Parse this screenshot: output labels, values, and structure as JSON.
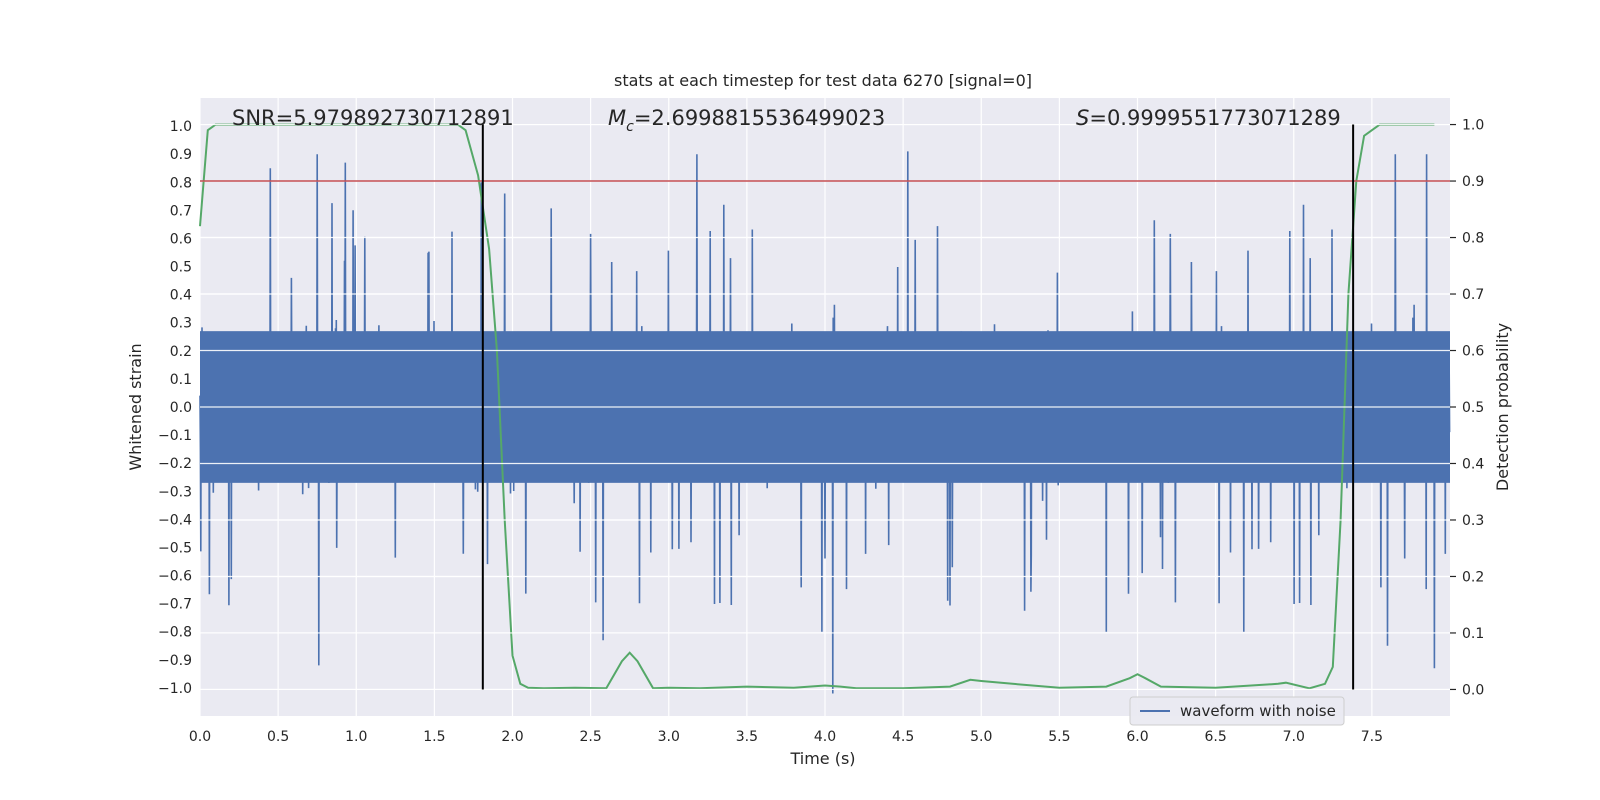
{
  "chart_data": {
    "type": "line",
    "title": "stats at each timestep for test data 6270 [signal=0]",
    "xlabel": "Time (s)",
    "ylabel": "Whitened strain",
    "y2label": "Detection probability",
    "xlim": [
      0.0,
      8.0
    ],
    "ylim": [
      -1.1,
      1.1
    ],
    "y2lim": [
      -0.047,
      1.047
    ],
    "xticks": [
      "0.0",
      "0.5",
      "1.0",
      "1.5",
      "2.0",
      "2.5",
      "3.0",
      "3.5",
      "4.0",
      "4.5",
      "5.0",
      "5.5",
      "6.0",
      "6.5",
      "7.0",
      "7.5"
    ],
    "yticks": [
      "1.0",
      "0.9",
      "0.8",
      "0.7",
      "0.6",
      "0.5",
      "0.4",
      "0.3",
      "0.2",
      "0.1",
      "0.0",
      "-0.1",
      "-0.2",
      "-0.3",
      "-0.4",
      "-0.5",
      "-0.6",
      "-0.7",
      "-0.8",
      "-0.9",
      "-1.0"
    ],
    "y2ticks": [
      "1.0",
      "0.9",
      "0.8",
      "0.7",
      "0.6",
      "0.5",
      "0.4",
      "0.3",
      "0.2",
      "0.1",
      "0.0"
    ],
    "grid": true,
    "legend_position": "lower-right",
    "annotations": {
      "snr": "SNR=5.979892730712891",
      "mc_symbol": "M",
      "mc_sub": "c",
      "mc_value": "=2.6998815536499023",
      "s_symbol": "S",
      "s_value": "=0.9999551773071289"
    },
    "threshold": 0.9,
    "vertical_lines_x": [
      1.81,
      7.38
    ],
    "series": [
      {
        "name": "waveform with noise",
        "axis": "left",
        "color": "#4c72b0",
        "description_visible": "dense noise waveform spanning 0-8 s",
        "envelope_hi": 0.45,
        "envelope_lo": -0.45,
        "peaks": [
          {
            "x": 0.45,
            "y": 0.85
          },
          {
            "x": 0.75,
            "y": 0.9
          },
          {
            "x": 0.93,
            "y": 0.87
          },
          {
            "x": 0.76,
            "y": -0.92
          },
          {
            "x": 2.58,
            "y": -0.83
          },
          {
            "x": 3.18,
            "y": 0.9
          },
          {
            "x": 4.53,
            "y": 0.91
          },
          {
            "x": 4.05,
            "y": -1.02
          },
          {
            "x": 3.98,
            "y": -0.8
          },
          {
            "x": 5.8,
            "y": -0.8
          },
          {
            "x": 6.68,
            "y": -0.8
          },
          {
            "x": 7.6,
            "y": -0.85
          },
          {
            "x": 7.85,
            "y": 0.9
          },
          {
            "x": 7.9,
            "y": -0.93
          },
          {
            "x": 7.65,
            "y": 0.9
          },
          {
            "x": 1.8,
            "y": 0.8
          },
          {
            "x": 1.95,
            "y": 0.76
          }
        ]
      },
      {
        "name": "detection probability",
        "axis": "right",
        "color": "#55a868",
        "x": [
          0.0,
          0.05,
          0.1,
          0.2,
          0.5,
          1.0,
          1.5,
          1.65,
          1.7,
          1.78,
          1.85,
          1.9,
          1.95,
          2.0,
          2.05,
          2.1,
          2.2,
          2.4,
          2.6,
          2.7,
          2.75,
          2.8,
          2.9,
          3.0,
          3.2,
          3.5,
          3.8,
          4.0,
          4.1,
          4.2,
          4.5,
          4.8,
          4.93,
          5.0,
          5.2,
          5.5,
          5.8,
          5.95,
          6.0,
          6.05,
          6.15,
          6.5,
          6.9,
          6.95,
          7.1,
          7.2,
          7.25,
          7.3,
          7.35,
          7.4,
          7.45,
          7.5,
          7.55,
          7.6,
          7.9
        ],
        "y": [
          0.82,
          0.99,
          1.0,
          1.0,
          1.0,
          1.0,
          1.0,
          1.0,
          0.99,
          0.91,
          0.78,
          0.6,
          0.3,
          0.06,
          0.01,
          0.003,
          0.002,
          0.003,
          0.002,
          0.05,
          0.065,
          0.05,
          0.002,
          0.003,
          0.002,
          0.005,
          0.003,
          0.007,
          0.005,
          0.002,
          0.002,
          0.005,
          0.017,
          0.015,
          0.01,
          0.003,
          0.005,
          0.02,
          0.027,
          0.02,
          0.005,
          0.003,
          0.01,
          0.012,
          0.002,
          0.01,
          0.04,
          0.3,
          0.7,
          0.9,
          0.98,
          0.99,
          1.0,
          1.0,
          1.0
        ]
      }
    ],
    "colors": {
      "background": "#eaeaf2",
      "grid": "#ffffff",
      "threshold": "#c44e52",
      "vline": "#000000"
    }
  }
}
